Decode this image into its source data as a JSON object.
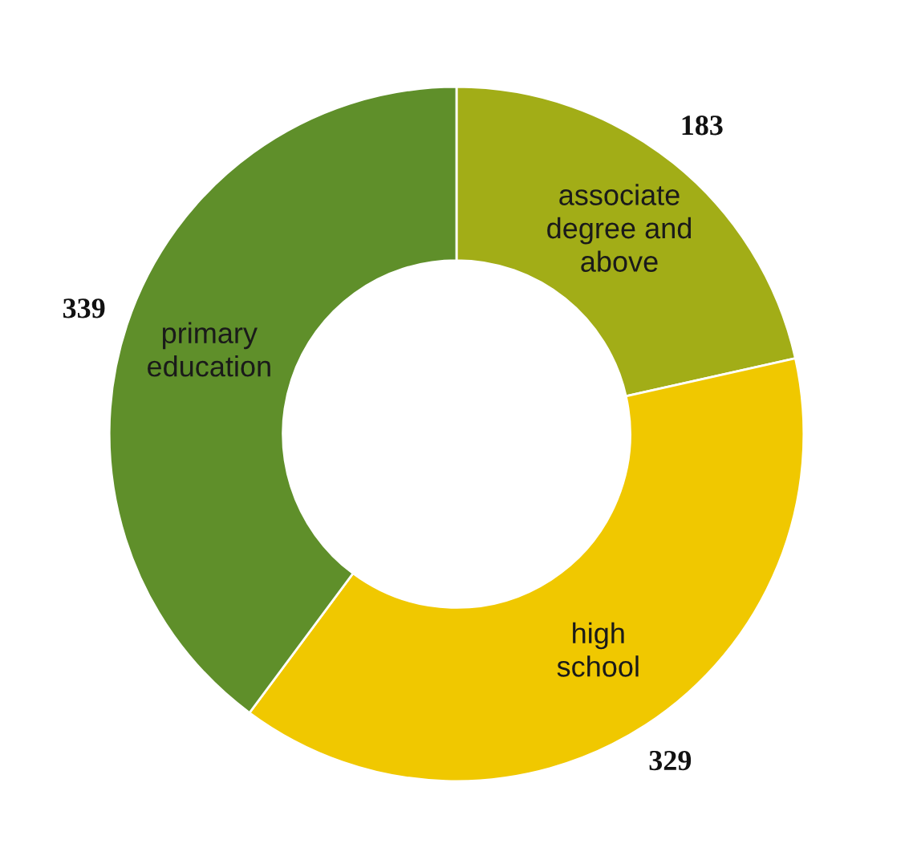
{
  "chart_data": {
    "type": "donut",
    "categories": [
      "associate\ndegree and\nabove",
      "high\nschool",
      "primary\neducation"
    ],
    "values": [
      183,
      329,
      339
    ],
    "colors": [
      "#a2ad17",
      "#f0c800",
      "#5f8f2a"
    ],
    "data_labels": true
  }
}
